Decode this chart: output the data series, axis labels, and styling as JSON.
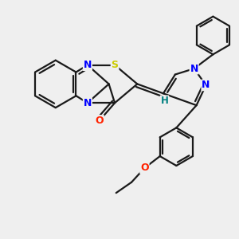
{
  "background_color": "#efefef",
  "bond_color": "#1a1a1a",
  "atom_colors": {
    "N": "#0000ff",
    "O": "#ff2200",
    "S": "#cccc00",
    "H": "#008080",
    "C": "#1a1a1a"
  },
  "figsize": [
    3.0,
    3.0
  ],
  "dpi": 100,
  "lw": 1.6
}
